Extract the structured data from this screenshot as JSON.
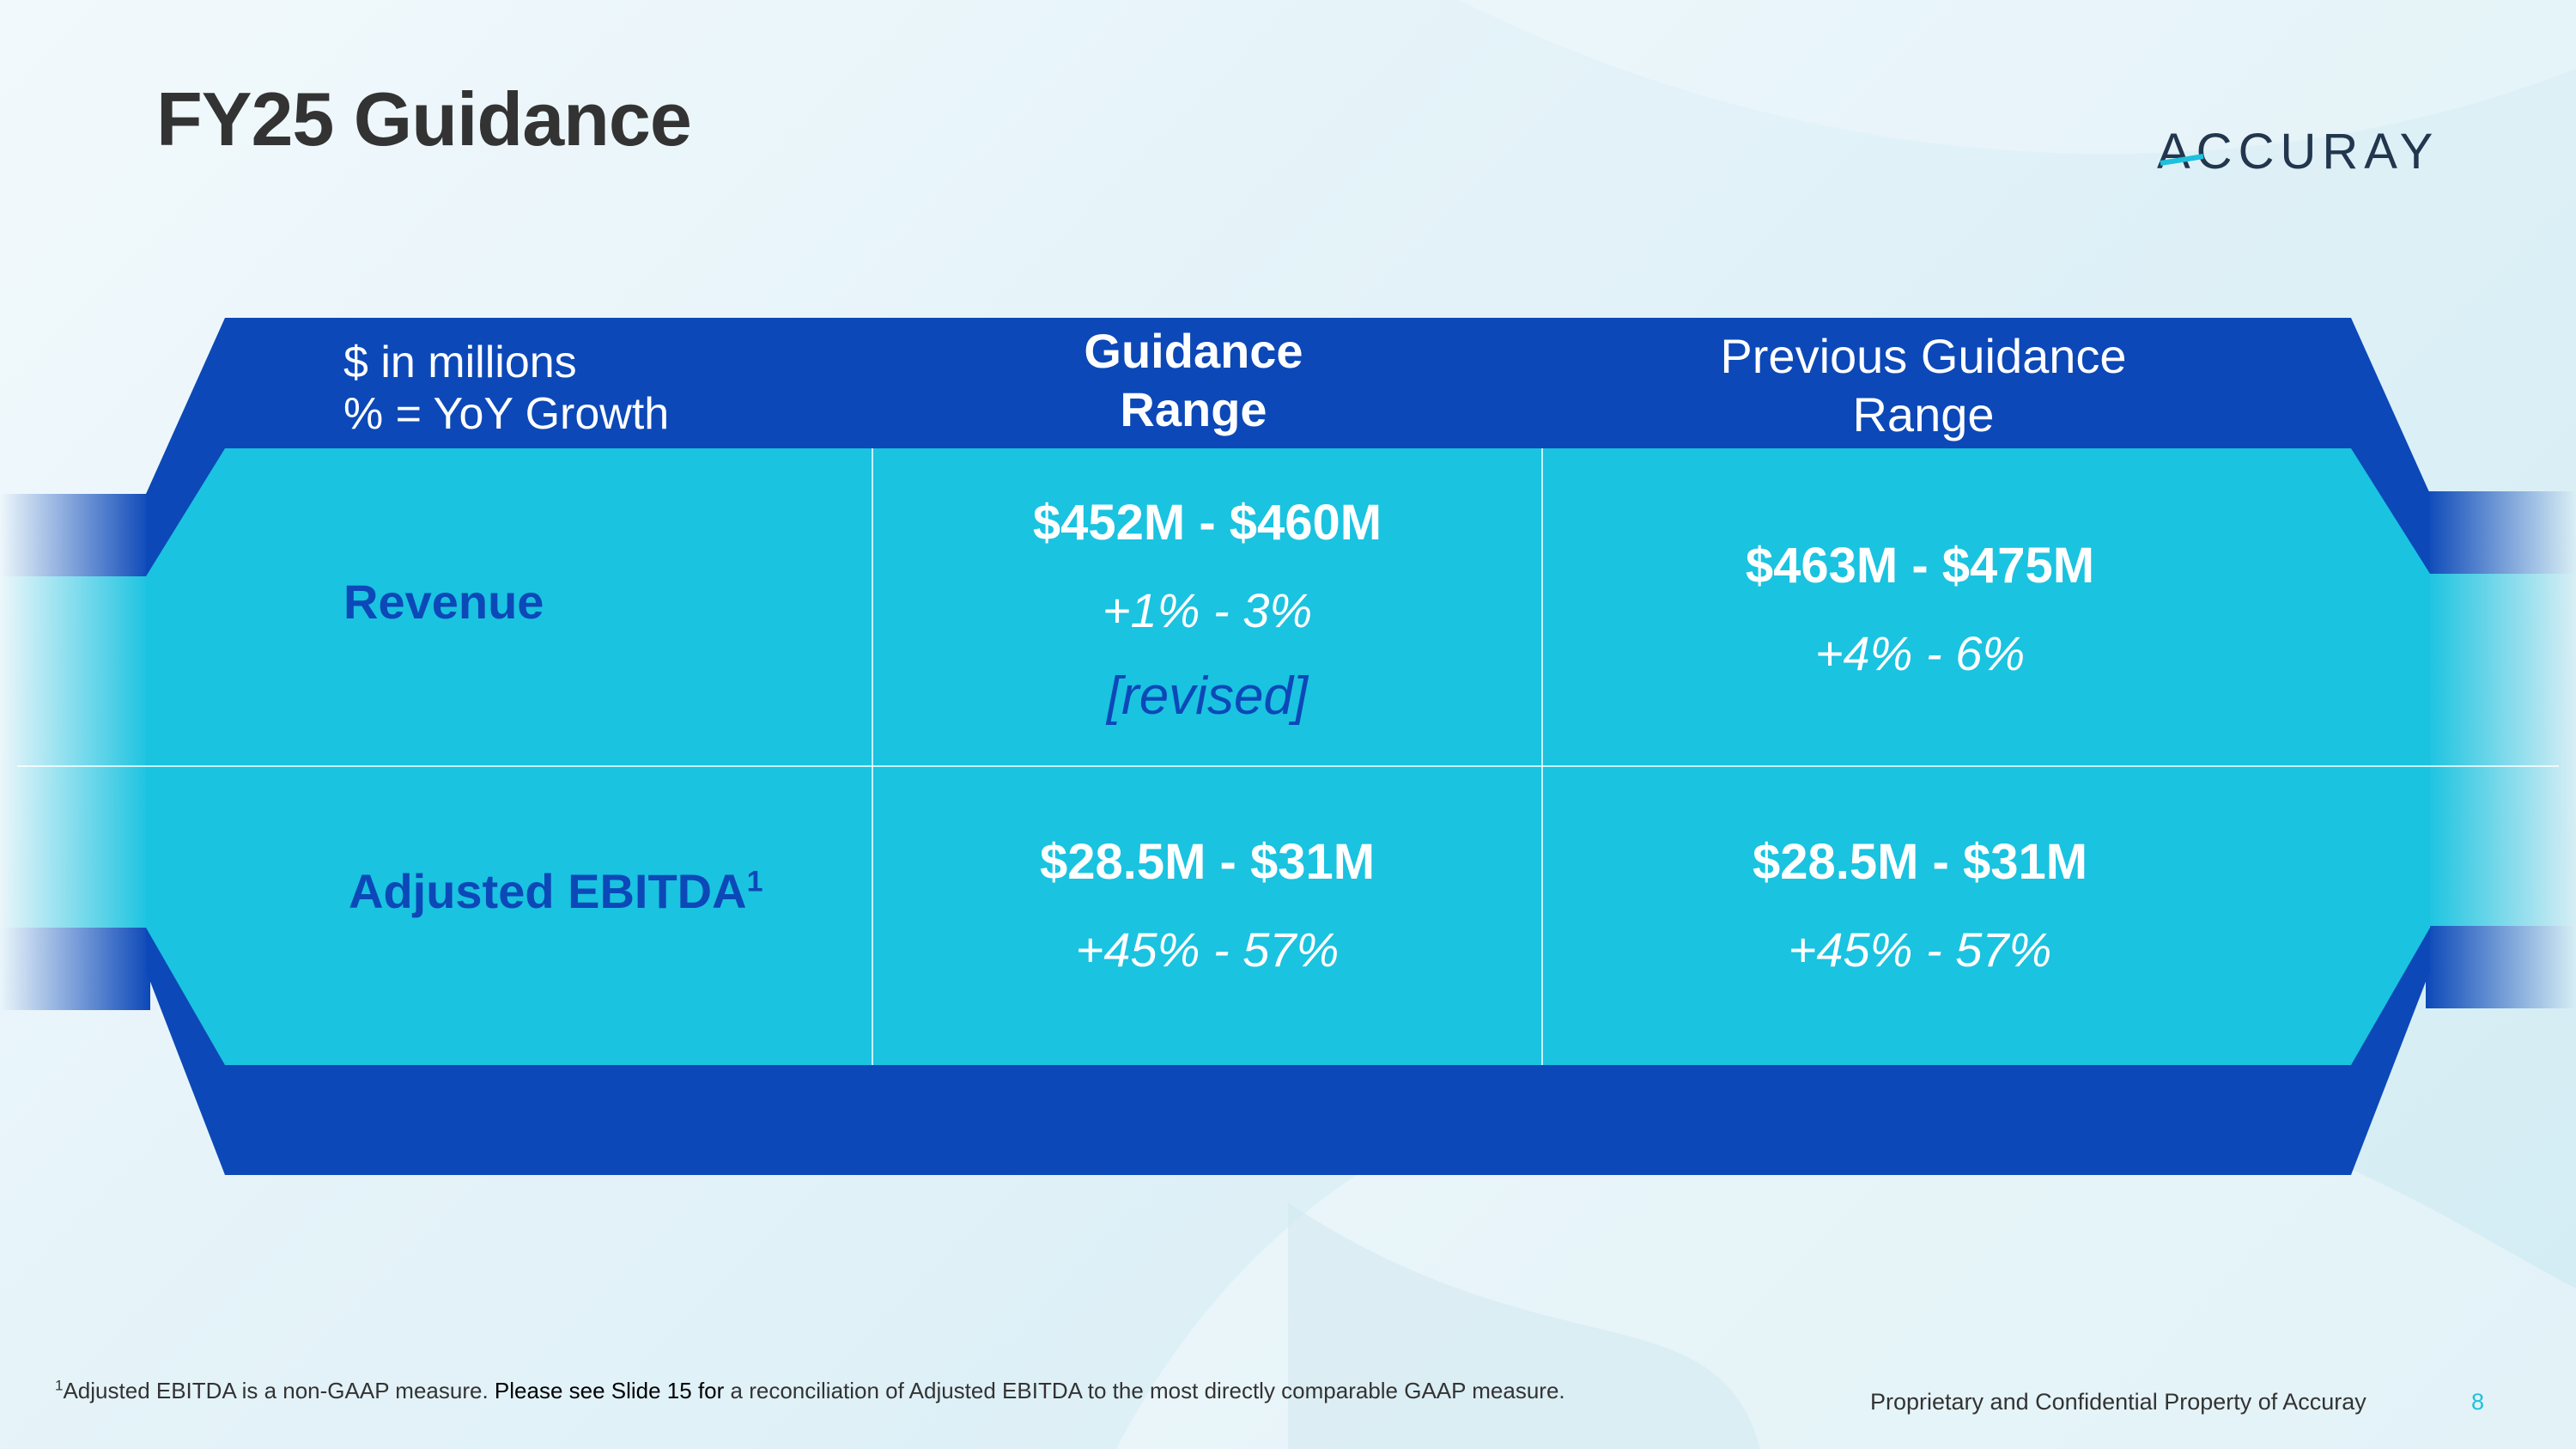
{
  "title": "FY25 Guidance",
  "logo": {
    "text": "ACCURAY",
    "name": "accuray-logo"
  },
  "colors": {
    "dark_blue": "#0c48b8",
    "cyan": "#1ac3e0",
    "white": "#ffffff",
    "title_gray": "#333333",
    "page_number": "#1ec0de"
  },
  "table": {
    "header": {
      "units_line1": "$ in millions",
      "units_line2": "% = YoY Growth",
      "guidance_line1": "Guidance",
      "guidance_line2": "Range",
      "previous_line1": "Previous Guidance",
      "previous_line2": "Range"
    },
    "rows": [
      {
        "label": "Revenue",
        "guidance_value": "$452M - $460M",
        "guidance_growth": "+1% - 3%",
        "guidance_note": "[revised]",
        "previous_value": "$463M - $475M",
        "previous_growth": "+4% - 6%"
      },
      {
        "label": "Adjusted EBITDA",
        "label_sup": "1",
        "guidance_value": "$28.5M - $31M",
        "guidance_growth": "+45% - 57%",
        "previous_value": "$28.5M - $31M",
        "previous_growth": "+45% - 57%"
      }
    ]
  },
  "footer": {
    "footnote_marker": "1",
    "footnote_part1": "Adjusted EBITDA is a non-GAAP measure.  ",
    "footnote_part2": "Please see Slide 15 for",
    "footnote_part3": " a reconciliation of Adjusted EBITDA to the most directly comparable GAAP measure.",
    "proprietary": "Proprietary and Confidential Property of Accuray",
    "page_number": "8"
  }
}
